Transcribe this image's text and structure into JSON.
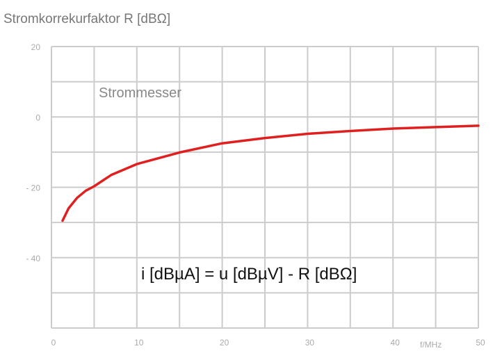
{
  "chart_data": {
    "type": "line",
    "title": "Stromkorrekurfaktor R [dBΩ]",
    "xlabel": "f/MHz",
    "ylabel": "",
    "xlim": [
      0,
      50
    ],
    "ylim": [
      -60,
      20
    ],
    "xticks": [
      0,
      10,
      20,
      30,
      40,
      50
    ],
    "yticks": [
      20,
      0,
      -20,
      -40
    ],
    "ytick_labels": [
      "20",
      "0",
      "- 20",
      "- 40"
    ],
    "grid": true,
    "annotations": [
      "Strommesser",
      "i [dBµA] = u [dBµV] - R [dBΩ]"
    ],
    "series": [
      {
        "color": "#e02020",
        "x": [
          1.3,
          2,
          3,
          4,
          5,
          7,
          10,
          15,
          20,
          25,
          30,
          35,
          40,
          45,
          50
        ],
        "y": [
          -29.5,
          -26,
          -23,
          -21,
          -19.7,
          -16.5,
          -13.4,
          -10.1,
          -7.5,
          -6,
          -4.8,
          -4,
          -3.3,
          -2.9,
          -2.5
        ]
      }
    ]
  }
}
